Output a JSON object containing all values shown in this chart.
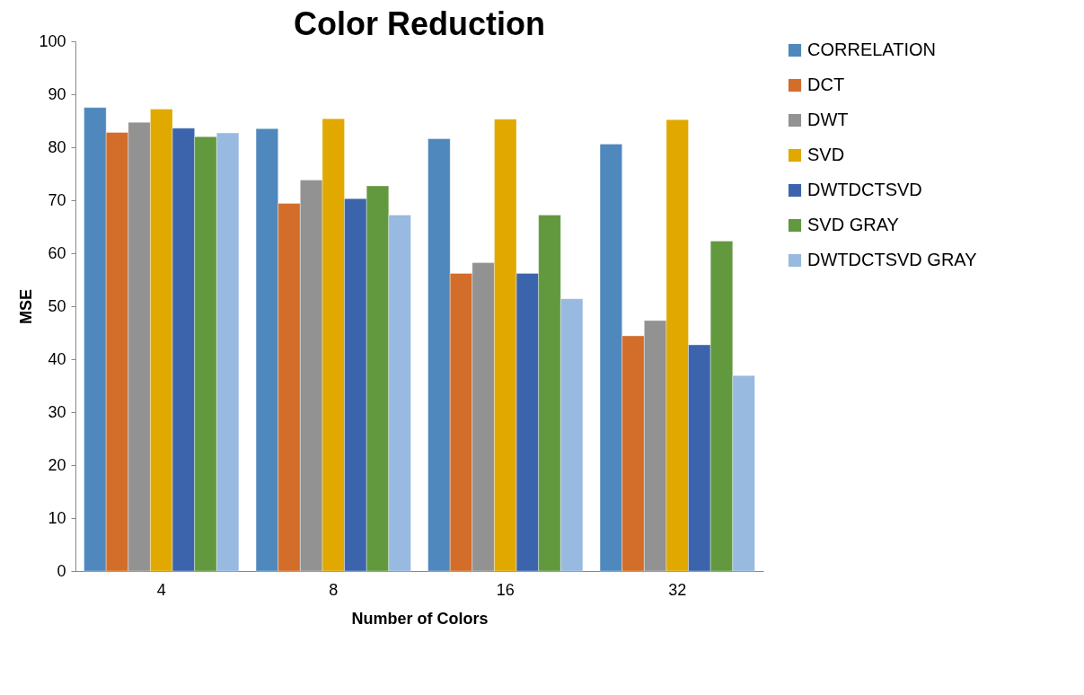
{
  "chart_data": {
    "type": "bar",
    "title": "Color Reduction",
    "xlabel": "Number of Colors",
    "ylabel": "MSE",
    "categories": [
      "4",
      "8",
      "16",
      "32"
    ],
    "series": [
      {
        "name": "CORRELATION",
        "color": "#4f88bd",
        "values": [
          87.5,
          83.5,
          81.6,
          80.6
        ]
      },
      {
        "name": "DCT",
        "color": "#d36d2a",
        "values": [
          82.8,
          69.4,
          56.2,
          44.4
        ]
      },
      {
        "name": "DWT",
        "color": "#929292",
        "values": [
          84.7,
          73.8,
          58.2,
          47.3
        ]
      },
      {
        "name": "SVD",
        "color": "#e1a900",
        "values": [
          87.2,
          85.4,
          85.3,
          85.2
        ]
      },
      {
        "name": "DWTDCTSVD",
        "color": "#3c64ad",
        "values": [
          83.6,
          70.3,
          56.2,
          42.7
        ]
      },
      {
        "name": "SVD GRAY",
        "color": "#62983e",
        "values": [
          82.0,
          72.7,
          67.2,
          62.3
        ]
      },
      {
        "name": "DWTDCTSVD GRAY",
        "color": "#98b9e0",
        "values": [
          82.7,
          67.2,
          51.4,
          36.9
        ]
      }
    ],
    "ylim": [
      0,
      100
    ],
    "yticks": [
      0,
      10,
      20,
      30,
      40,
      50,
      60,
      70,
      80,
      90,
      100
    ],
    "grid": false,
    "legend": "right"
  }
}
